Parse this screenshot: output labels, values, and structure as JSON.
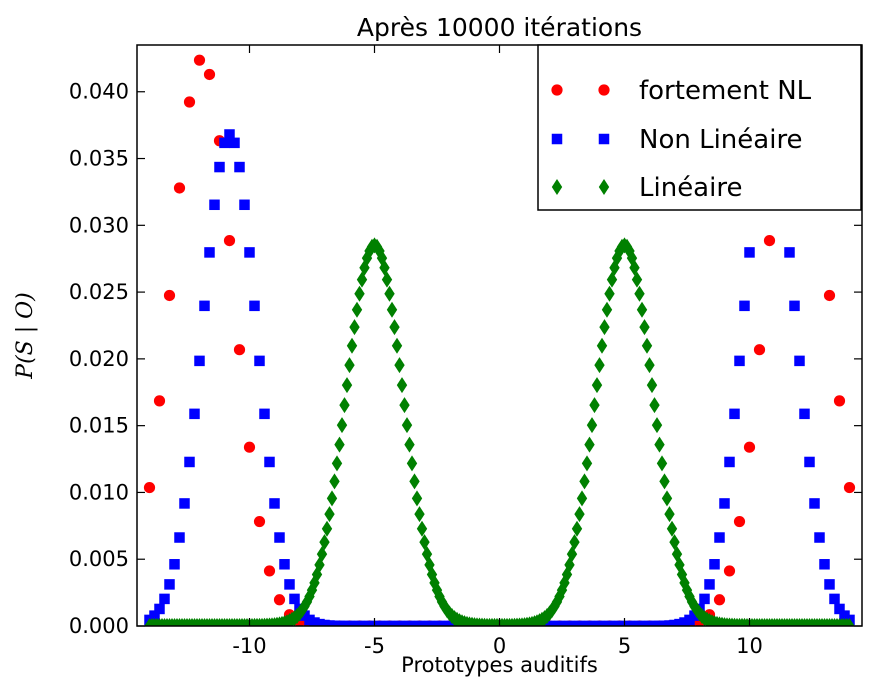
{
  "chart_data": {
    "type": "scatter",
    "title": "Après 10000 itérations",
    "xlabel": "Prototypes auditifs",
    "ylabel": "P(S | O)",
    "xlim": [
      -14.5,
      14.5
    ],
    "ylim": [
      0,
      0.0435
    ],
    "x_ticks": [
      -10,
      -5,
      0,
      5,
      10
    ],
    "x_tick_labels": [
      "-10",
      "-5",
      "0",
      "5",
      "10"
    ],
    "y_ticks": [
      0.0,
      0.005,
      0.01,
      0.015,
      0.02,
      0.025,
      0.03,
      0.035,
      0.04
    ],
    "y_tick_labels": [
      "0.000",
      "0.005",
      "0.010",
      "0.015",
      "0.020",
      "0.025",
      "0.030",
      "0.035",
      "0.040"
    ],
    "grid": false,
    "legend_position": "top-right",
    "x_range": [
      -14,
      14
    ],
    "x_step": 0.2,
    "series": [
      {
        "name": "fortement NL",
        "marker": "circle",
        "color": "#ff0000",
        "x_step": 0.4,
        "peaks": [
          {
            "center": -11.9,
            "sigma": 1.25,
            "height": 0.0425
          },
          {
            "center": 11.9,
            "sigma": 1.25,
            "height": 0.0425
          }
        ]
      },
      {
        "name": "Non Linéaire",
        "marker": "square",
        "color": "#0000ff",
        "x_step": 0.2,
        "peaks": [
          {
            "center": -10.8,
            "sigma": 1.08,
            "height": 0.0368
          },
          {
            "center": 10.8,
            "sigma": 1.08,
            "height": 0.0368
          }
        ]
      },
      {
        "name": "Linéaire",
        "marker": "diamond",
        "color": "#008000",
        "x_step": 0.1,
        "peaks": [
          {
            "center": -5.0,
            "sigma": 1.15,
            "height": 0.0285
          },
          {
            "center": 5.0,
            "sigma": 1.15,
            "height": 0.0285
          }
        ]
      }
    ]
  }
}
